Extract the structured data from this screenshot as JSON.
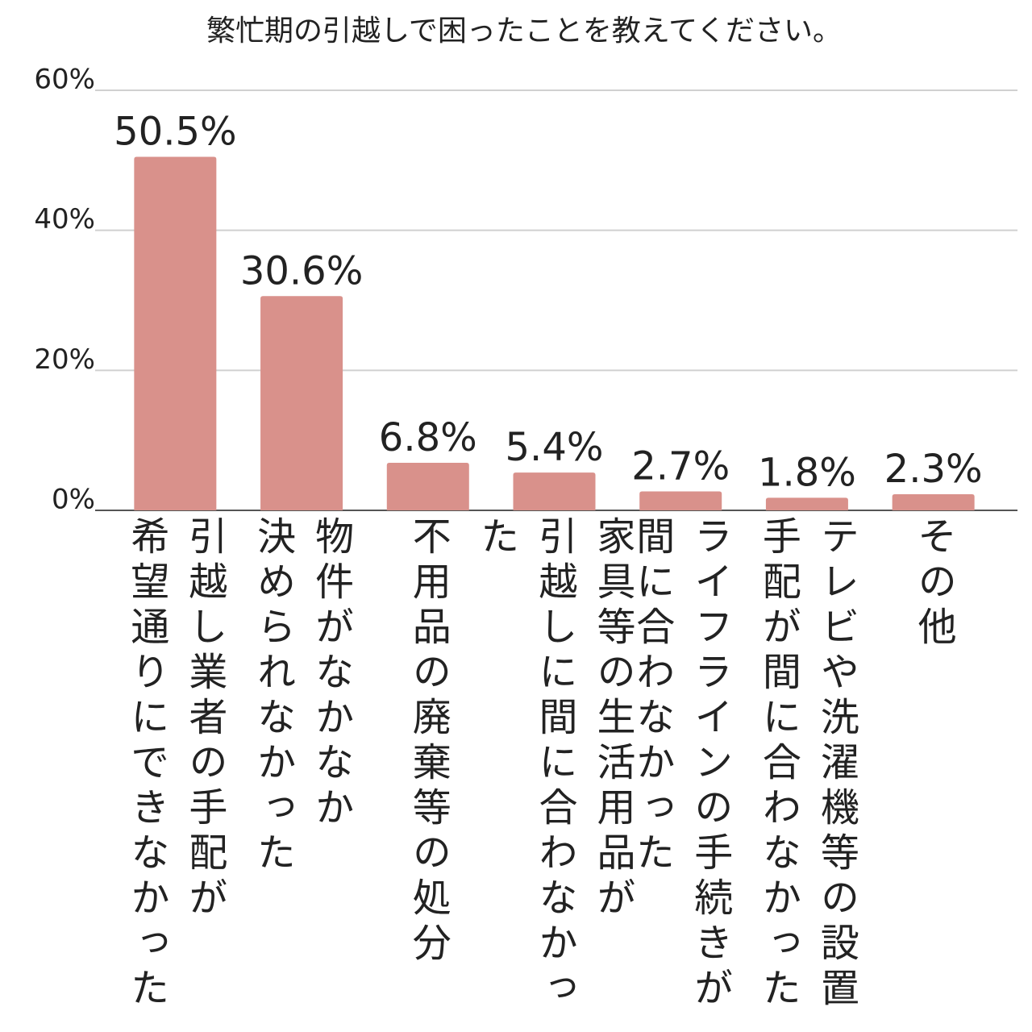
{
  "chart_data": {
    "type": "bar",
    "title": "繁忙期の引越しで困ったことを教えてください。",
    "categories": [
      "引越し業者の手配が\n希望通りにできなかった",
      "物件がなかなか\n決められなかった",
      "不用品の廃棄等の処分",
      "家具等の生活用品が\n引越しに間に合わなかった",
      "ライフラインの手続きが\n間に合わなかった",
      "テレビや洗濯機等の設置\n手配が間に合わなかった",
      "その他"
    ],
    "values": [
      50.5,
      30.6,
      6.8,
      5.4,
      2.7,
      1.8,
      2.3
    ],
    "value_labels": [
      "50.5%",
      "30.6%",
      "6.8%",
      "5.4%",
      "2.7%",
      "1.8%",
      "2.3%"
    ],
    "color": "#d9918b",
    "ylim": [
      0,
      60
    ],
    "yticks": [
      {
        "value": 0,
        "label": "0%"
      },
      {
        "value": 20,
        "label": "20%"
      },
      {
        "value": 40,
        "label": "40%"
      },
      {
        "value": 60,
        "label": "60%"
      }
    ],
    "grid": true
  }
}
